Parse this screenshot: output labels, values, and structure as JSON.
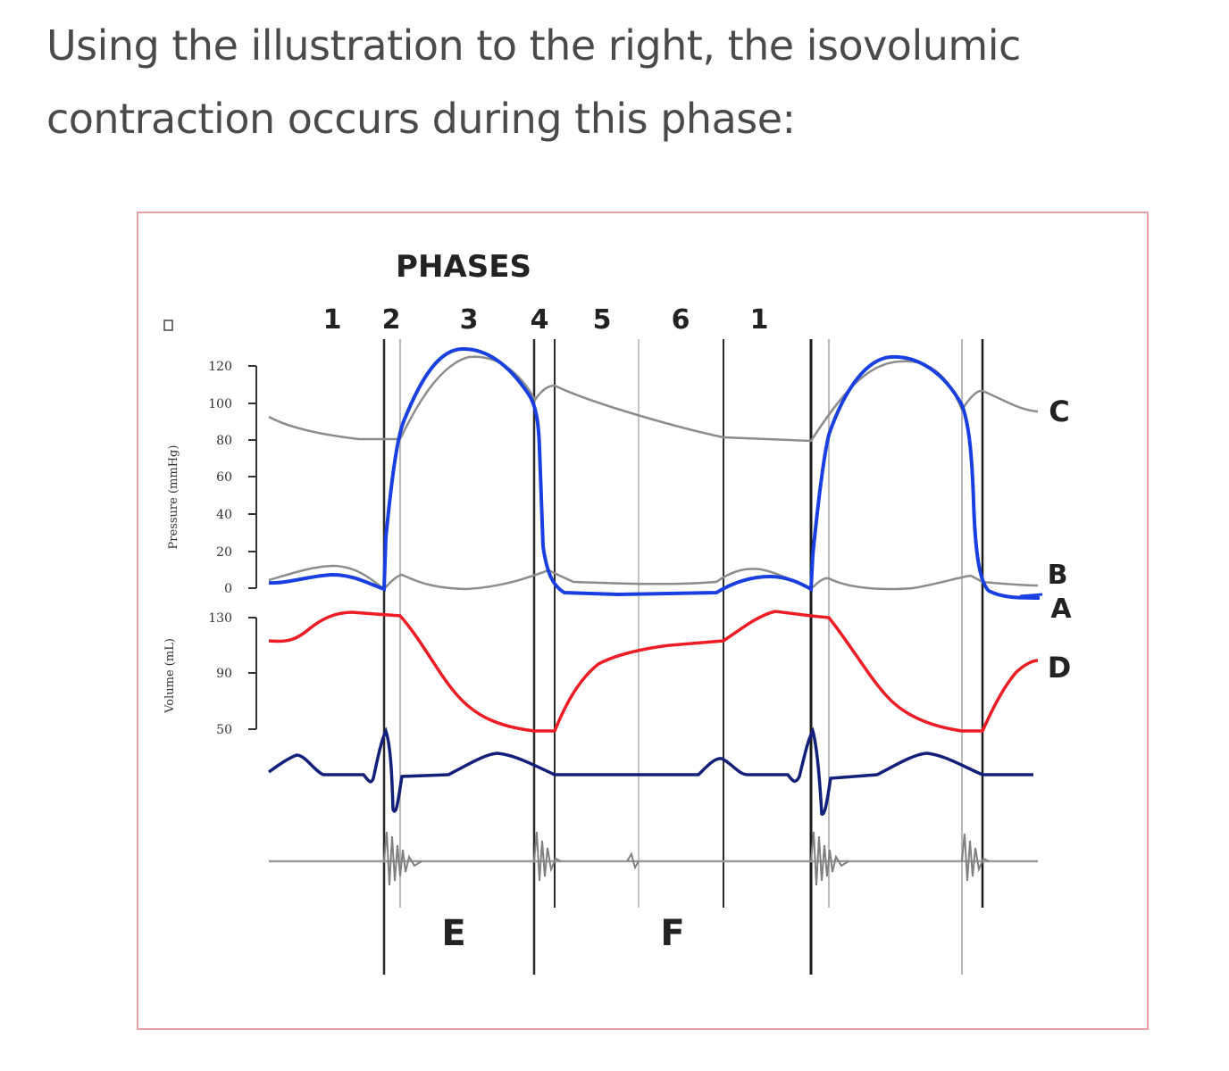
{
  "question": {
    "line1": "Using the illustration to the right, the isovolumic",
    "line2": "contraction occurs during this phase:"
  },
  "figure": {
    "phases_title": "PHASES",
    "phase_numbers": [
      "1",
      "2",
      "3",
      "4",
      "5",
      "6",
      "1"
    ],
    "pressure_axis_label": "Pressure (mmHg)",
    "pressure_ticks": [
      "120",
      "100",
      "80",
      "60",
      "40",
      "20",
      "0"
    ],
    "volume_axis_label": "Volume (mL)",
    "volume_ticks": [
      "130",
      "90",
      "50"
    ],
    "curve_labels": [
      "C",
      "B",
      "A",
      "D"
    ],
    "bottom_labels": [
      "E",
      "F"
    ],
    "colors": {
      "ventricular_pressure": "#1a3fe0",
      "aortic_atrial_pressure": "#8c8c8c",
      "ventricular_volume": "#ee1c24",
      "ecg": "#12207a",
      "phonocardiogram": "#8c8c8c",
      "frame_border": "#e8a0a4"
    }
  }
}
